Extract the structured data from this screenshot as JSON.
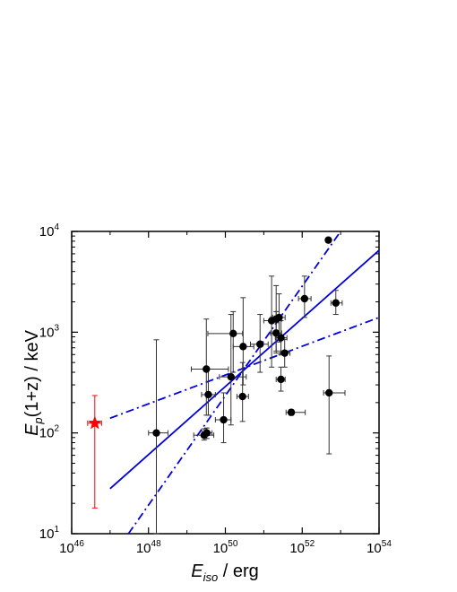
{
  "chart_data": {
    "type": "scatter",
    "x_scale": "log",
    "y_scale": "log",
    "xlim": [
      1e+46,
      1e+54
    ],
    "ylim": [
      10,
      10000
    ],
    "grid": false,
    "xlabel": {
      "main": "E",
      "sub": "iso",
      "rest": " / erg"
    },
    "ylabel": {
      "main": "E",
      "sub": "p",
      "rest": "(1+z) / keV"
    },
    "x_ticks": [
      {
        "value": 1e+46,
        "base": "10",
        "exp": "46"
      },
      {
        "value": 1e+48,
        "base": "10",
        "exp": "48"
      },
      {
        "value": 1e+50,
        "base": "10",
        "exp": "50"
      },
      {
        "value": 1e+52,
        "base": "10",
        "exp": "52"
      },
      {
        "value": 1e+54,
        "base": "10",
        "exp": "54"
      }
    ],
    "y_ticks": [
      {
        "value": 10,
        "base": "10",
        "exp": "1"
      },
      {
        "value": 100,
        "base": "10",
        "exp": "2"
      },
      {
        "value": 1000,
        "base": "10",
        "exp": "3"
      },
      {
        "value": 10000,
        "base": "10",
        "exp": "4"
      }
    ],
    "series": [
      {
        "marker": "circle",
        "color": "#000000",
        "points": [
          {
            "x": 1.6e+48,
            "y": 100,
            "xerr": [
              1e+48,
              3.2e+48
            ],
            "yerr": [
              10,
              840
            ]
          },
          {
            "x": 2.8e+49,
            "y": 95,
            "xerr": [
              1.5e+49,
              5e+49
            ],
            "yerr": [
              85,
              110
            ]
          },
          {
            "x": 3.3e+49,
            "y": 100,
            "xerr": [
              2.5e+49,
              4.5e+49
            ],
            "yerr": [
              88,
              112
            ]
          },
          {
            "x": 3.2e+49,
            "y": 430,
            "xerr": [
              1.3e+49,
              1.2e+50
            ],
            "yerr": [
              150,
              1350
            ]
          },
          {
            "x": 3.6e+49,
            "y": 240,
            "xerr": [
              2.4e+49,
              5.5e+49
            ],
            "yerr": [
              150,
              430
            ]
          },
          {
            "x": 9e+49,
            "y": 135,
            "xerr": [
              5.5e+49,
              1.4e+50
            ],
            "yerr": [
              80,
              250
            ]
          },
          {
            "x": 1.4e+50,
            "y": 360,
            "xerr": [
              7e+49,
              3.5e+50
            ],
            "yerr": [
              120,
              1500
            ]
          },
          {
            "x": 1.6e+50,
            "y": 970,
            "xerr": [
              3.5e+49,
              2.8e+50
            ],
            "yerr": [
              400,
              1600
            ]
          },
          {
            "x": 2.8e+50,
            "y": 230,
            "xerr": [
              2e+50,
              4e+50
            ],
            "yerr": [
              130,
              500
            ]
          },
          {
            "x": 2.9e+50,
            "y": 720,
            "xerr": [
              1.6e+50,
              5.5e+50
            ],
            "yerr": [
              300,
              2200
            ]
          },
          {
            "x": 8e+50,
            "y": 760,
            "xerr": [
              4.5e+50,
              1.3e+51
            ],
            "yerr": [
              400,
              1500
            ]
          },
          {
            "x": 1.6e+51,
            "y": 1300,
            "xerr": [
              1e+51,
              2.4e+51
            ],
            "yerr": [
              450,
              3600
            ]
          },
          {
            "x": 2.1e+51,
            "y": 1350,
            "xerr": [
              1.5e+51,
              2.9e+51
            ],
            "yerr": [
              650,
              2900
            ]
          },
          {
            "x": 2.1e+51,
            "y": 980,
            "xerr": [
              1.5e+51,
              2.9e+51
            ],
            "yerr": [
              620,
              1600
            ]
          },
          {
            "x": 2.5e+51,
            "y": 1400,
            "xerr": [
              1.7e+51,
              3.6e+51
            ],
            "yerr": [
              800,
              2400
            ]
          },
          {
            "x": 2.8e+51,
            "y": 880,
            "xerr": [
              2e+51,
              4e+51
            ],
            "yerr": [
              600,
              1300
            ]
          },
          {
            "x": 2.8e+51,
            "y": 340,
            "xerr": [
              2.1e+51,
              3.6e+51
            ],
            "yerr": [
              260,
              450
            ]
          },
          {
            "x": 3.5e+51,
            "y": 620,
            "xerr": [
              2.6e+51,
              4.8e+51
            ],
            "yerr": [
              450,
              850
            ]
          },
          {
            "x": 5.2e+51,
            "y": 160,
            "xerr": [
              3.8e+51,
              1.2e+52
            ],
            "yerr": [
              150,
              170
            ]
          },
          {
            "x": 1.15e+52,
            "y": 2150,
            "xerr": [
              8e+51,
              1.7e+52
            ],
            "yerr": [
              1400,
              3600
            ]
          },
          {
            "x": 4.8e+52,
            "y": 8200,
            "xerr": [
              4.6e+52,
              5e+52
            ],
            "yerr": [
              8000,
              8400
            ]
          },
          {
            "x": 5e+52,
            "y": 250,
            "xerr": [
              3.6e+52,
              1.3e+53
            ],
            "yerr": [
              62,
              580
            ]
          },
          {
            "x": 7.5e+52,
            "y": 1950,
            "xerr": [
              5.6e+52,
              1.1e+53
            ],
            "yerr": [
              1500,
              2600
            ]
          }
        ]
      },
      {
        "marker": "star",
        "color": "#ff0000",
        "points": [
          {
            "x": 4e+46,
            "y": 125,
            "xerr": [
              2.6e+46,
              6e+46
            ],
            "yerr": [
              18,
              235
            ]
          }
        ]
      }
    ],
    "lines": [
      {
        "style": "solid",
        "color": "#0000dd",
        "points": [
          {
            "x": 1e+47,
            "y": 28
          },
          {
            "x": 1e+54,
            "y": 6500
          }
        ]
      },
      {
        "style": "dashdot",
        "color": "#0000dd",
        "points": [
          {
            "x": 1e+47,
            "y": 140
          },
          {
            "x": 1e+54,
            "y": 1400
          }
        ]
      },
      {
        "style": "dashdot",
        "color": "#0000dd",
        "points": [
          {
            "x": 3e+47,
            "y": 10
          },
          {
            "x": 1e+53,
            "y": 10000
          }
        ]
      }
    ]
  }
}
